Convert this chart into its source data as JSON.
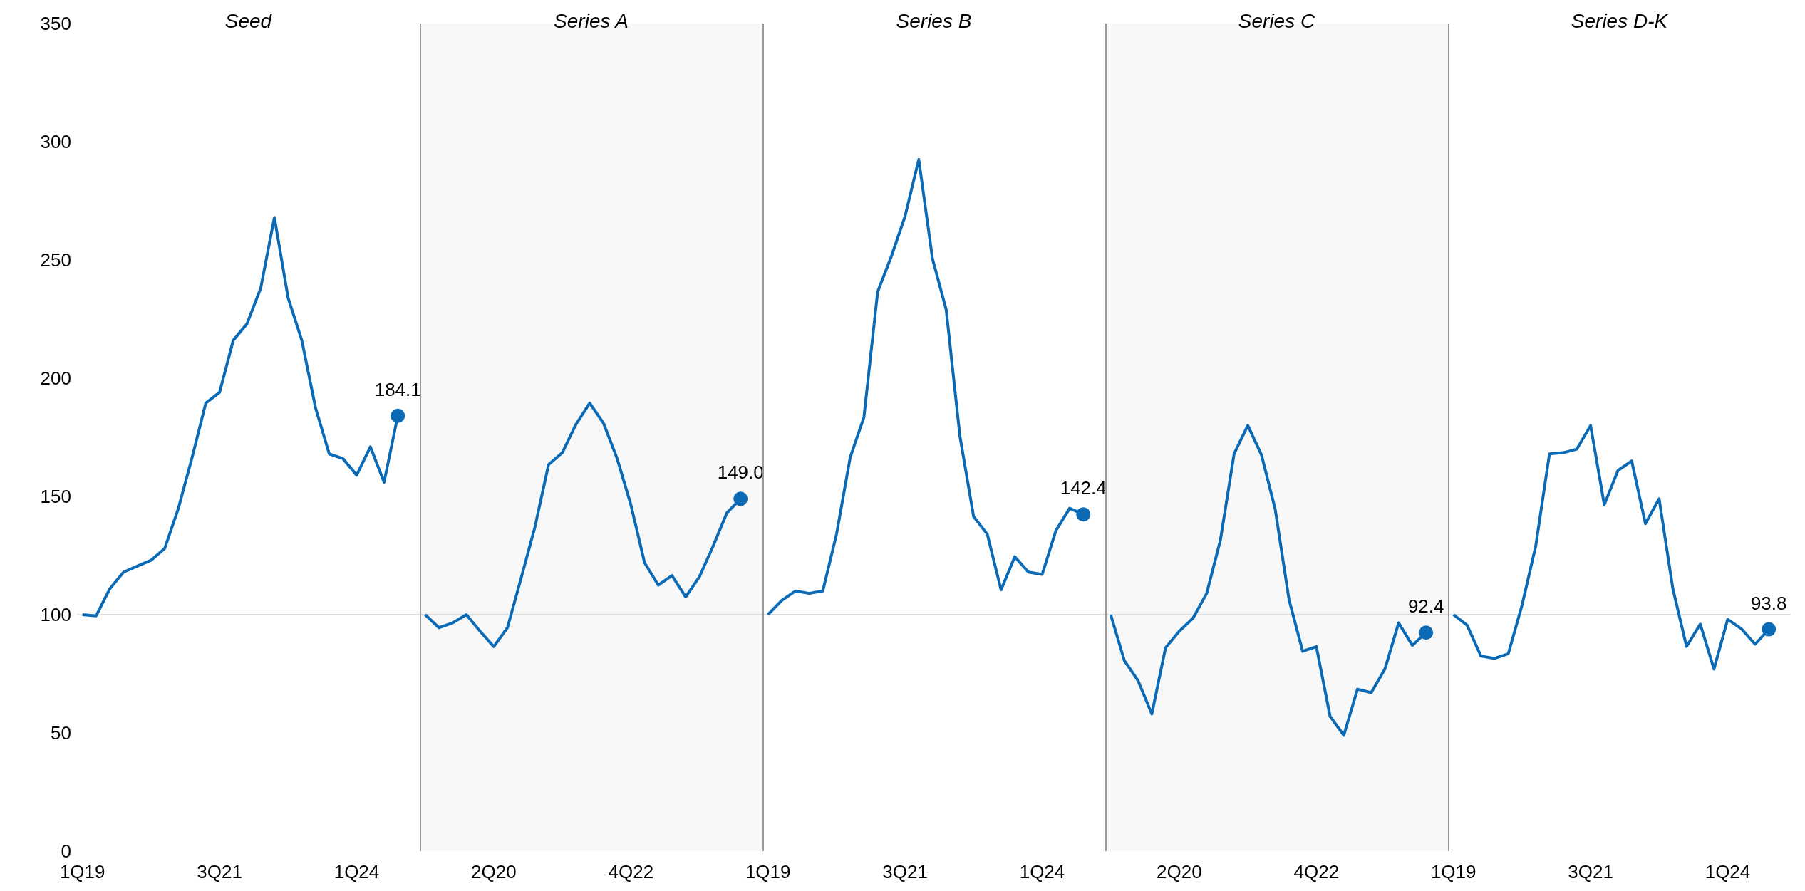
{
  "chart_data": [
    {
      "type": "line",
      "title": "Seed",
      "categories": [
        "1Q19",
        null,
        null,
        null,
        null,
        null,
        null,
        null,
        null,
        null,
        "3Q21",
        null,
        null,
        null,
        null,
        null,
        null,
        null,
        null,
        null,
        "1Q24",
        null,
        null,
        null
      ],
      "series": [
        {
          "color": "#0a6ab6",
          "values": [
            100,
            99.5,
            111,
            118,
            120.5,
            123,
            128,
            145,
            166.5,
            189.5,
            194,
            216,
            223,
            238,
            268,
            234,
            216,
            187.5,
            168,
            166,
            159,
            171,
            156,
            184.1
          ],
          "value_labels": [
            null,
            null,
            null,
            null,
            null,
            null,
            null,
            null,
            null,
            null,
            null,
            null,
            null,
            null,
            null,
            null,
            null,
            null,
            null,
            null,
            null,
            null,
            null,
            "184.1"
          ]
        }
      ],
      "ylim": [
        0,
        350
      ],
      "yticks": [
        0,
        50,
        100,
        150,
        200,
        250,
        300,
        350
      ],
      "ref_lines": [
        {
          "axis": "y",
          "value": 100,
          "color": "#d0d0d0"
        }
      ]
    },
    {
      "type": "line",
      "title": "Series A",
      "categories": [
        null,
        null,
        null,
        null,
        null,
        "2Q20",
        null,
        null,
        null,
        null,
        null,
        null,
        null,
        null,
        null,
        "4Q22",
        null,
        null,
        null,
        null,
        null,
        null,
        null,
        null
      ],
      "series": [
        {
          "color": "#0a6ab6",
          "values": [
            100,
            94.5,
            96.5,
            100,
            93,
            86.5,
            94.5,
            115.5,
            137,
            163.5,
            168.5,
            180.5,
            189.5,
            181,
            166,
            146.5,
            122,
            112.5,
            116.5,
            107.5,
            116,
            129,
            143,
            149.0
          ],
          "value_labels": [
            null,
            null,
            null,
            null,
            null,
            null,
            null,
            null,
            null,
            null,
            null,
            null,
            null,
            null,
            null,
            null,
            null,
            null,
            null,
            null,
            null,
            null,
            null,
            "149.0"
          ]
        }
      ],
      "ylim": [
        0,
        350
      ],
      "yticks": [
        0,
        50,
        100,
        150,
        200,
        250,
        300,
        350
      ],
      "tick_labels": "x",
      "ref_lines": [
        {
          "axis": "y",
          "value": 100,
          "color": "#d0d0d0"
        }
      ],
      "bands": [
        {
          "axis": "y",
          "from": 0,
          "to": 350,
          "color": "#f8f8f8"
        }
      ]
    },
    {
      "type": "line",
      "title": "Series B",
      "categories": [
        "1Q19",
        null,
        null,
        null,
        null,
        null,
        null,
        null,
        null,
        null,
        "3Q21",
        null,
        null,
        null,
        null,
        null,
        null,
        null,
        null,
        null,
        "1Q24",
        null,
        null,
        null
      ],
      "series": [
        {
          "color": "#0a6ab6",
          "values": [
            100,
            106,
            110,
            109,
            110,
            134,
            166.5,
            183.5,
            236.5,
            251.5,
            268.5,
            292.5,
            250.5,
            229,
            175.5,
            141.5,
            134,
            110.5,
            124.5,
            118,
            117,
            135.5,
            145,
            142.4
          ],
          "value_labels": [
            null,
            null,
            null,
            null,
            null,
            null,
            null,
            null,
            null,
            null,
            null,
            null,
            null,
            null,
            null,
            null,
            null,
            null,
            null,
            null,
            null,
            null,
            null,
            "142.4"
          ]
        }
      ],
      "ylim": [
        0,
        350
      ],
      "yticks": [
        0,
        50,
        100,
        150,
        200,
        250,
        300,
        350
      ],
      "tick_labels": "x",
      "ref_lines": [
        {
          "axis": "y",
          "value": 100,
          "color": "#d0d0d0"
        }
      ]
    },
    {
      "type": "line",
      "title": "Series C",
      "categories": [
        null,
        null,
        null,
        null,
        null,
        "2Q20",
        null,
        null,
        null,
        null,
        null,
        null,
        null,
        null,
        null,
        "4Q22",
        null,
        null,
        null,
        null,
        null,
        null,
        null,
        null
      ],
      "series": [
        {
          "color": "#0a6ab6",
          "values": [
            100,
            80.5,
            72,
            58,
            86,
            93,
            98.5,
            109,
            131.5,
            168,
            180,
            167.5,
            144.5,
            106.5,
            84.5,
            86.5,
            57,
            49,
            68.5,
            67,
            77,
            96.5,
            87,
            92.4
          ],
          "value_labels": [
            null,
            null,
            null,
            null,
            null,
            null,
            null,
            null,
            null,
            null,
            null,
            null,
            null,
            null,
            null,
            null,
            null,
            null,
            null,
            null,
            null,
            null,
            null,
            "92.4"
          ]
        }
      ],
      "ylim": [
        0,
        350
      ],
      "yticks": [
        0,
        50,
        100,
        150,
        200,
        250,
        300,
        350
      ],
      "tick_labels": "x",
      "ref_lines": [
        {
          "axis": "y",
          "value": 100,
          "color": "#d0d0d0"
        }
      ],
      "bands": [
        {
          "axis": "y",
          "from": 0,
          "to": 350,
          "color": "#f8f8f8"
        }
      ]
    },
    {
      "type": "line",
      "title": "Series D-K",
      "categories": [
        "1Q19",
        null,
        null,
        null,
        null,
        null,
        null,
        null,
        null,
        null,
        "3Q21",
        null,
        null,
        null,
        null,
        null,
        null,
        null,
        null,
        null,
        "1Q24",
        null,
        null,
        null
      ],
      "series": [
        {
          "color": "#0a6ab6",
          "values": [
            100,
            95.5,
            82.5,
            81.5,
            83.5,
            104,
            129,
            168,
            168.5,
            170,
            180,
            146.5,
            161,
            165,
            138.5,
            149,
            111,
            86.5,
            96,
            77,
            98,
            94,
            87.5,
            93.8
          ],
          "value_labels": [
            null,
            null,
            null,
            null,
            null,
            null,
            null,
            null,
            null,
            null,
            null,
            null,
            null,
            null,
            null,
            null,
            null,
            null,
            null,
            null,
            null,
            null,
            null,
            "93.8"
          ]
        }
      ],
      "ylim": [
        0,
        350
      ],
      "yticks": [
        0,
        50,
        100,
        150,
        200,
        250,
        300,
        350
      ],
      "tick_labels": "x",
      "ref_lines": [
        {
          "axis": "y",
          "value": 100,
          "color": "#d0d0d0"
        }
      ]
    }
  ]
}
